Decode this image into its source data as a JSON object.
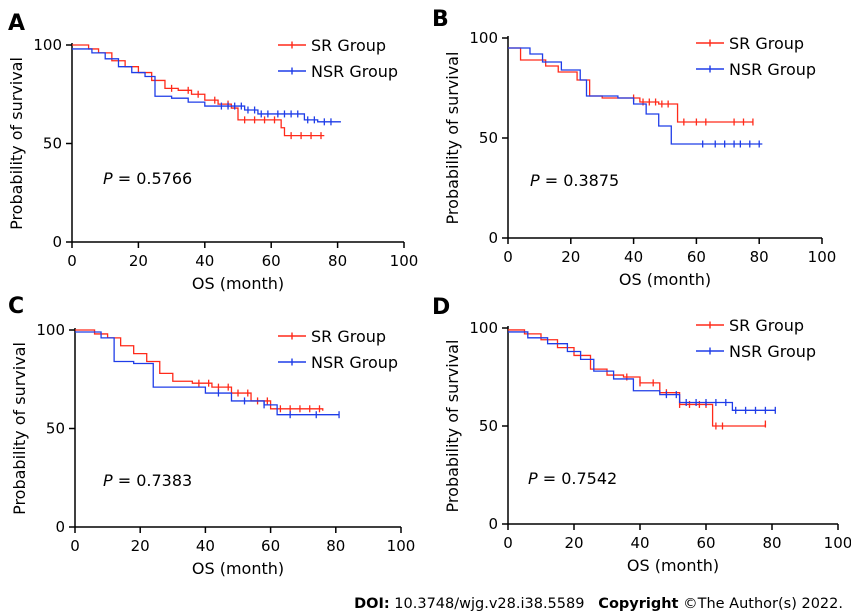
{
  "footer": {
    "doi_label": "DOI:",
    "doi_value": "10.3748/wjg.v28.i38.5589",
    "copyright_label": "Copyright",
    "copyright_value": "©The Author(s) 2022."
  },
  "colors": {
    "sr": "#ff2a1a",
    "nsr": "#1f3de8",
    "axis": "#000000"
  },
  "chart_data": [
    {
      "type": "line",
      "panel": "A",
      "xlabel": "OS (month)",
      "ylabel": "Probability of survival",
      "xlim": [
        0,
        100
      ],
      "ylim": [
        0,
        100
      ],
      "xticks": [
        0,
        20,
        40,
        60,
        80,
        100
      ],
      "yticks": [
        0,
        50,
        100
      ],
      "annotation": {
        "prefix": "P",
        "text": " = 0.5766"
      },
      "legend_position": "top-right",
      "series": [
        {
          "name": "SR Group",
          "color": "#ff2a1a",
          "x": [
            0,
            5,
            8,
            12,
            16,
            20,
            24,
            28,
            32,
            36,
            40,
            44,
            48,
            50,
            54,
            60,
            63,
            64,
            76
          ],
          "y": [
            100,
            98,
            96,
            92,
            89,
            86,
            82,
            78,
            77,
            75,
            72,
            70,
            68,
            62,
            62,
            62,
            58,
            54,
            54
          ],
          "censor_x": [
            30,
            35,
            38,
            43,
            47,
            52,
            55,
            58,
            61,
            66,
            69,
            72,
            75
          ]
        },
        {
          "name": "NSR Group",
          "color": "#1f3de8",
          "x": [
            0,
            6,
            10,
            14,
            18,
            22,
            25,
            30,
            35,
            40,
            46,
            52,
            56,
            60,
            70,
            74,
            81
          ],
          "y": [
            98,
            96,
            93,
            89,
            86,
            84,
            74,
            73,
            71,
            69,
            69,
            67,
            65,
            65,
            62,
            61,
            61
          ],
          "censor_x": [
            45,
            47,
            49,
            51,
            53,
            55,
            57,
            59,
            62,
            64,
            66,
            68,
            71,
            73,
            76,
            78
          ]
        }
      ]
    },
    {
      "type": "line",
      "panel": "B",
      "xlabel": "OS (month)",
      "ylabel": "Probability of survival",
      "xlim": [
        0,
        100
      ],
      "ylim": [
        0,
        100
      ],
      "xticks": [
        0,
        20,
        40,
        60,
        80,
        100
      ],
      "yticks": [
        0,
        50,
        100
      ],
      "annotation": {
        "prefix": "P",
        "text": " = 0.3875"
      },
      "legend_position": "top-right",
      "series": [
        {
          "name": "SR Group",
          "color": "#ff2a1a",
          "x": [
            0,
            4,
            12,
            16,
            22,
            26,
            30,
            36,
            42,
            48,
            54,
            78
          ],
          "y": [
            95,
            89,
            86,
            83,
            79,
            71,
            70,
            70,
            68,
            67,
            58,
            58
          ],
          "censor_x": [
            40,
            43,
            45,
            47,
            49,
            51,
            56,
            60,
            63,
            72,
            75,
            78
          ]
        },
        {
          "name": "NSR Group",
          "color": "#1f3de8",
          "x": [
            0,
            7,
            11,
            17,
            23,
            25,
            35,
            40,
            44,
            48,
            52,
            81
          ],
          "y": [
            95,
            92,
            88,
            84,
            79,
            71,
            70,
            67,
            62,
            56,
            47,
            47
          ],
          "censor_x": [
            62,
            66,
            69,
            72,
            74,
            77,
            80
          ]
        }
      ]
    },
    {
      "type": "line",
      "panel": "C",
      "xlabel": "OS (month)",
      "ylabel": "Probability of survival",
      "xlim": [
        0,
        100
      ],
      "ylim": [
        0,
        100
      ],
      "xticks": [
        0,
        20,
        40,
        60,
        80,
        100
      ],
      "yticks": [
        0,
        50,
        100
      ],
      "annotation": {
        "prefix": "P",
        "text": " = 0.7383"
      },
      "legend_position": "top-right",
      "series": [
        {
          "name": "SR Group",
          "color": "#ff2a1a",
          "x": [
            0,
            6,
            10,
            14,
            18,
            22,
            26,
            30,
            36,
            42,
            48,
            54,
            60,
            76
          ],
          "y": [
            100,
            98,
            96,
            92,
            88,
            84,
            78,
            74,
            73,
            71,
            68,
            64,
            60,
            59
          ],
          "censor_x": [
            38,
            41,
            44,
            47,
            50,
            53,
            56,
            59,
            63,
            66,
            69,
            72,
            75
          ]
        },
        {
          "name": "NSR Group",
          "color": "#1f3de8",
          "x": [
            0,
            8,
            12,
            18,
            24,
            30,
            40,
            48,
            58,
            62,
            81
          ],
          "y": [
            99,
            96,
            84,
            83,
            71,
            71,
            68,
            64,
            62,
            57,
            57
          ],
          "censor_x": [
            44,
            52,
            58,
            66,
            74,
            81
          ]
        }
      ]
    },
    {
      "type": "line",
      "panel": "D",
      "xlabel": "OS (month)",
      "ylabel": "Probability of survival",
      "xlim": [
        0,
        100
      ],
      "ylim": [
        0,
        100
      ],
      "xticks": [
        0,
        20,
        40,
        60,
        80,
        100
      ],
      "yticks": [
        0,
        50,
        100
      ],
      "annotation": {
        "prefix": "P",
        "text": " = 0.7542"
      },
      "legend_position": "top-right",
      "series": [
        {
          "name": "SR Group",
          "color": "#ff2a1a",
          "x": [
            0,
            5,
            10,
            15,
            20,
            25,
            30,
            35,
            40,
            46,
            52,
            56,
            62,
            78
          ],
          "y": [
            99,
            97,
            94,
            90,
            86,
            79,
            76,
            75,
            72,
            67,
            61,
            61,
            50,
            51
          ],
          "censor_x": [
            36,
            40,
            44,
            48,
            52,
            55,
            58,
            60,
            63,
            65,
            78
          ]
        },
        {
          "name": "NSR Group",
          "color": "#1f3de8",
          "x": [
            0,
            6,
            12,
            18,
            22,
            26,
            32,
            38,
            46,
            52,
            60,
            68,
            81
          ],
          "y": [
            98,
            95,
            92,
            88,
            84,
            78,
            74,
            68,
            66,
            62,
            62,
            58,
            58
          ],
          "censor_x": [
            48,
            51,
            54,
            57,
            60,
            63,
            66,
            69,
            72,
            75,
            78,
            81
          ]
        }
      ]
    }
  ]
}
